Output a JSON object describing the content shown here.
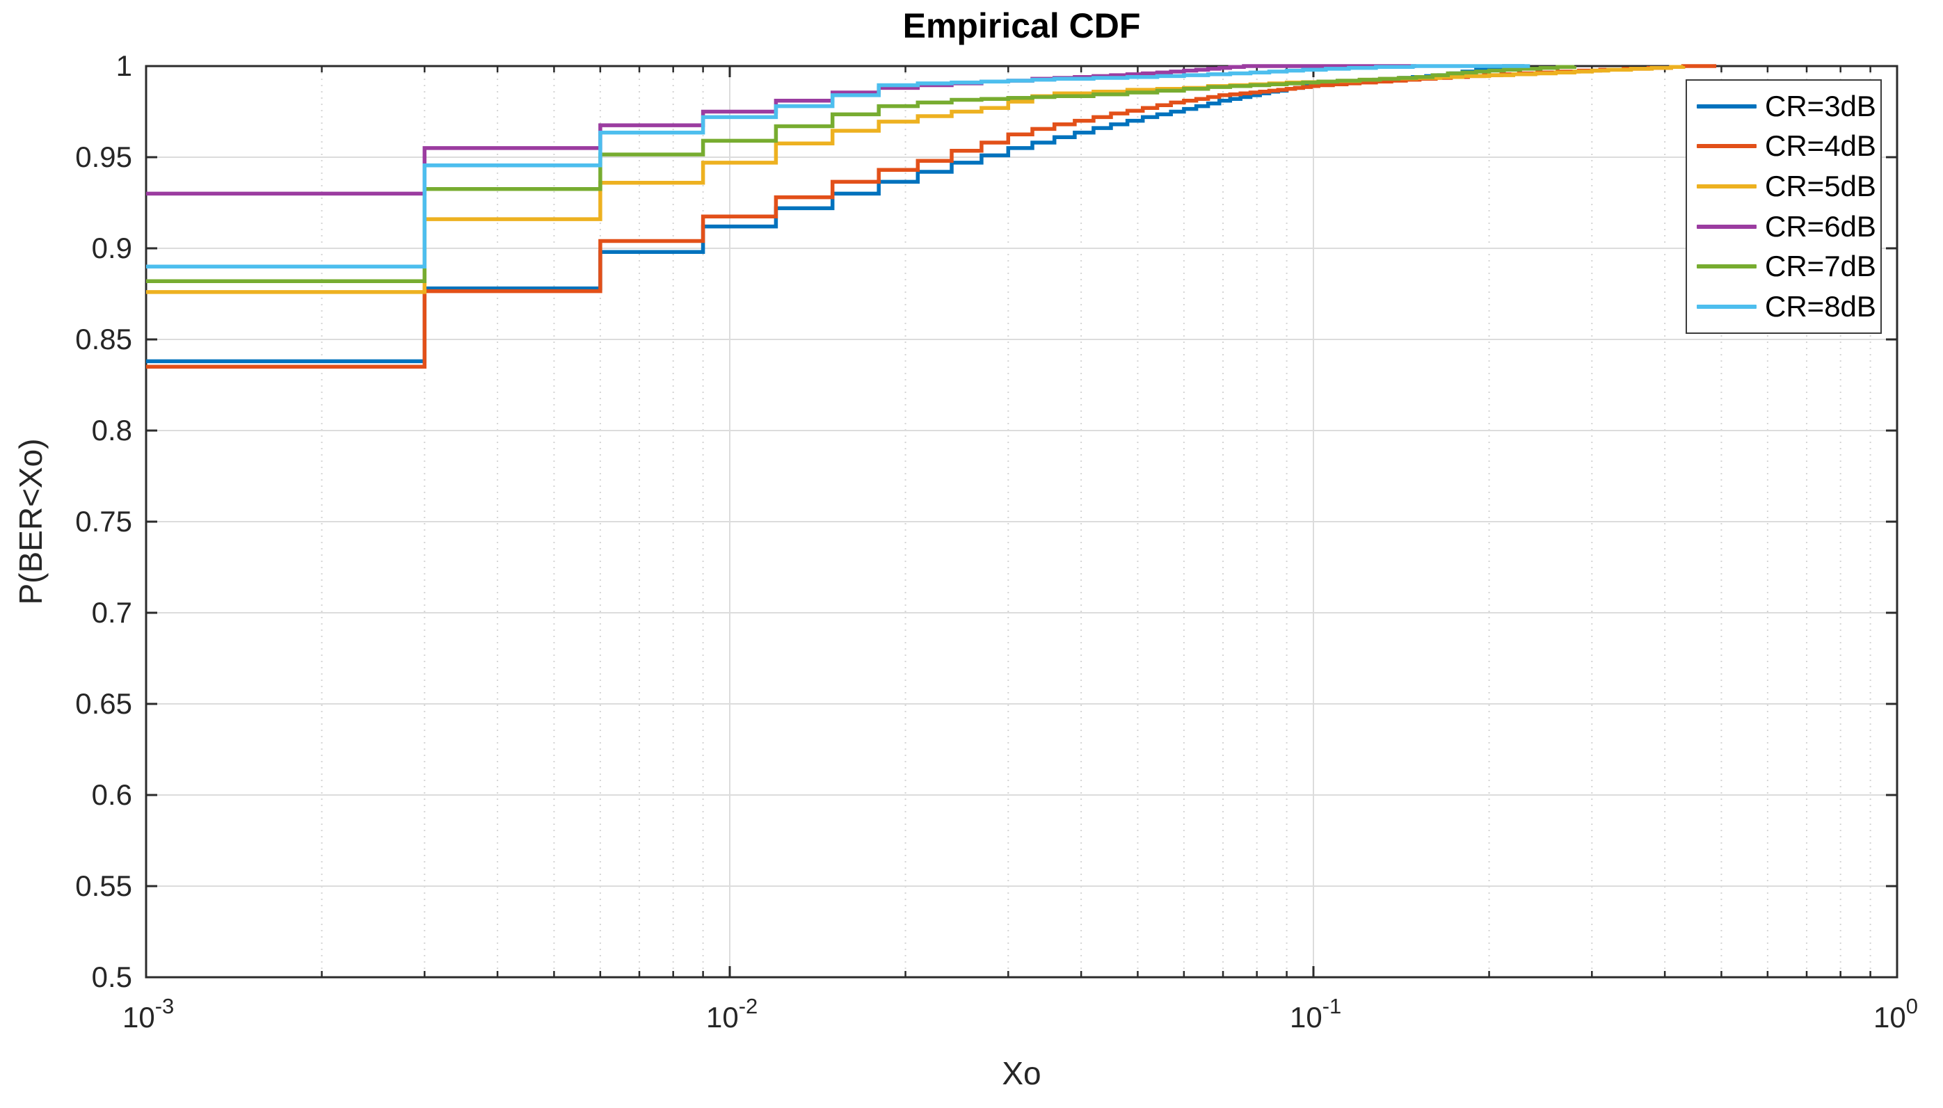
{
  "chart_data": {
    "type": "line",
    "subtype": "ecdf-step",
    "title": "Empirical CDF",
    "xlabel": "Xo",
    "ylabel": "P(BER<Xo)",
    "xscale": "log",
    "xlim": [
      0.001,
      1
    ],
    "ylim": [
      0.5,
      1
    ],
    "grid": true,
    "legend_position": "top-right-inside",
    "x_ticks": [
      {
        "mantissa": "10",
        "exponent": "-3",
        "value": 0.001
      },
      {
        "mantissa": "10",
        "exponent": "-2",
        "value": 0.01
      },
      {
        "mantissa": "10",
        "exponent": "-1",
        "value": 0.1
      },
      {
        "mantissa": "10",
        "exponent": "0",
        "value": 1
      }
    ],
    "x_minor_ticks": [
      0.002,
      0.003,
      0.004,
      0.005,
      0.006,
      0.007,
      0.008,
      0.009,
      0.02,
      0.03,
      0.04,
      0.05,
      0.06,
      0.07,
      0.08,
      0.09,
      0.2,
      0.3,
      0.4,
      0.5,
      0.6,
      0.7,
      0.8,
      0.9
    ],
    "y_ticks": [
      {
        "label": "1",
        "value": 1.0
      },
      {
        "label": "0.95",
        "value": 0.95
      },
      {
        "label": "0.9",
        "value": 0.9
      },
      {
        "label": "0.85",
        "value": 0.85
      },
      {
        "label": "0.8",
        "value": 0.8
      },
      {
        "label": "0.75",
        "value": 0.75
      },
      {
        "label": "0.7",
        "value": 0.7
      },
      {
        "label": "0.65",
        "value": 0.65
      },
      {
        "label": "0.6",
        "value": 0.6
      },
      {
        "label": "0.55",
        "value": 0.55
      },
      {
        "label": "0.5",
        "value": 0.5
      }
    ],
    "style": {
      "axis_color": "#2b2b2b",
      "major_grid_color": "#dcdcdc",
      "minor_grid_color": "#d4d4d4",
      "background": "#ffffff",
      "line_width": 5.5
    },
    "series": [
      {
        "name": "CR=3dB",
        "color": "#0072BD",
        "points": [
          [
            0.001,
            0.838
          ],
          [
            0.003,
            0.878
          ],
          [
            0.006,
            0.898
          ],
          [
            0.009,
            0.912
          ],
          [
            0.012,
            0.922
          ],
          [
            0.015,
            0.93
          ],
          [
            0.018,
            0.9365
          ],
          [
            0.021,
            0.942
          ],
          [
            0.024,
            0.947
          ],
          [
            0.027,
            0.951
          ],
          [
            0.03,
            0.955
          ],
          [
            0.033,
            0.958
          ],
          [
            0.036,
            0.961
          ],
          [
            0.039,
            0.9635
          ],
          [
            0.042,
            0.966
          ],
          [
            0.045,
            0.968
          ],
          [
            0.048,
            0.97
          ],
          [
            0.051,
            0.972
          ],
          [
            0.054,
            0.9735
          ],
          [
            0.057,
            0.975
          ],
          [
            0.06,
            0.9765
          ],
          [
            0.063,
            0.978
          ],
          [
            0.066,
            0.9795
          ],
          [
            0.069,
            0.981
          ],
          [
            0.072,
            0.982
          ],
          [
            0.075,
            0.983
          ],
          [
            0.078,
            0.984
          ],
          [
            0.081,
            0.985
          ],
          [
            0.084,
            0.986
          ],
          [
            0.087,
            0.9865
          ],
          [
            0.09,
            0.9875
          ],
          [
            0.093,
            0.988
          ],
          [
            0.096,
            0.989
          ],
          [
            0.099,
            0.9895
          ],
          [
            0.102,
            0.99
          ],
          [
            0.108,
            0.991
          ],
          [
            0.114,
            0.9915
          ],
          [
            0.12,
            0.992
          ],
          [
            0.127,
            0.9925
          ],
          [
            0.134,
            0.993
          ],
          [
            0.141,
            0.9935
          ],
          [
            0.148,
            0.994
          ],
          [
            0.156,
            0.9945
          ],
          [
            0.164,
            0.995
          ],
          [
            0.172,
            0.996
          ],
          [
            0.18,
            0.997
          ],
          [
            0.19,
            0.998
          ],
          [
            0.2,
            0.999
          ],
          [
            0.212,
            1.0
          ],
          [
            0.23,
            1.0
          ]
        ]
      },
      {
        "name": "CR=4dB",
        "color": "#E25019",
        "points": [
          [
            0.001,
            0.835
          ],
          [
            0.003,
            0.8765
          ],
          [
            0.006,
            0.904
          ],
          [
            0.009,
            0.9175
          ],
          [
            0.012,
            0.928
          ],
          [
            0.015,
            0.9365
          ],
          [
            0.018,
            0.943
          ],
          [
            0.021,
            0.948
          ],
          [
            0.024,
            0.9535
          ],
          [
            0.027,
            0.958
          ],
          [
            0.03,
            0.9625
          ],
          [
            0.033,
            0.9655
          ],
          [
            0.036,
            0.968
          ],
          [
            0.039,
            0.97
          ],
          [
            0.042,
            0.972
          ],
          [
            0.045,
            0.974
          ],
          [
            0.048,
            0.9755
          ],
          [
            0.051,
            0.977
          ],
          [
            0.054,
            0.9785
          ],
          [
            0.057,
            0.98
          ],
          [
            0.06,
            0.981
          ],
          [
            0.063,
            0.982
          ],
          [
            0.066,
            0.983
          ],
          [
            0.069,
            0.984
          ],
          [
            0.072,
            0.9845
          ],
          [
            0.075,
            0.985
          ],
          [
            0.078,
            0.9855
          ],
          [
            0.081,
            0.986
          ],
          [
            0.084,
            0.9865
          ],
          [
            0.087,
            0.987
          ],
          [
            0.09,
            0.9875
          ],
          [
            0.093,
            0.988
          ],
          [
            0.096,
            0.9885
          ],
          [
            0.099,
            0.989
          ],
          [
            0.102,
            0.9895
          ],
          [
            0.108,
            0.99
          ],
          [
            0.114,
            0.9905
          ],
          [
            0.12,
            0.991
          ],
          [
            0.128,
            0.9915
          ],
          [
            0.136,
            0.992
          ],
          [
            0.144,
            0.9925
          ],
          [
            0.152,
            0.993
          ],
          [
            0.162,
            0.9935
          ],
          [
            0.172,
            0.994
          ],
          [
            0.184,
            0.9945
          ],
          [
            0.196,
            0.995
          ],
          [
            0.21,
            0.9955
          ],
          [
            0.225,
            0.996
          ],
          [
            0.242,
            0.9965
          ],
          [
            0.262,
            0.997
          ],
          [
            0.285,
            0.9975
          ],
          [
            0.31,
            0.998
          ],
          [
            0.34,
            0.9985
          ],
          [
            0.375,
            0.999
          ],
          [
            0.41,
            0.9995
          ],
          [
            0.43,
            1.0
          ],
          [
            0.49,
            1.0
          ]
        ]
      },
      {
        "name": "CR=5dB",
        "color": "#EDB120",
        "points": [
          [
            0.001,
            0.876
          ],
          [
            0.003,
            0.916
          ],
          [
            0.006,
            0.936
          ],
          [
            0.009,
            0.947
          ],
          [
            0.012,
            0.9575
          ],
          [
            0.015,
            0.9645
          ],
          [
            0.018,
            0.9695
          ],
          [
            0.021,
            0.9725
          ],
          [
            0.024,
            0.975
          ],
          [
            0.027,
            0.977
          ],
          [
            0.03,
            0.9805
          ],
          [
            0.033,
            0.9835
          ],
          [
            0.036,
            0.985
          ],
          [
            0.042,
            0.986
          ],
          [
            0.048,
            0.987
          ],
          [
            0.054,
            0.9875
          ],
          [
            0.06,
            0.988
          ],
          [
            0.066,
            0.989
          ],
          [
            0.072,
            0.9895
          ],
          [
            0.078,
            0.99
          ],
          [
            0.084,
            0.9905
          ],
          [
            0.09,
            0.991
          ],
          [
            0.096,
            0.9912
          ],
          [
            0.102,
            0.9915
          ],
          [
            0.11,
            0.9918
          ],
          [
            0.12,
            0.9925
          ],
          [
            0.13,
            0.993
          ],
          [
            0.14,
            0.9932
          ],
          [
            0.15,
            0.9935
          ],
          [
            0.165,
            0.994
          ],
          [
            0.18,
            0.9945
          ],
          [
            0.2,
            0.995
          ],
          [
            0.22,
            0.9955
          ],
          [
            0.24,
            0.996
          ],
          [
            0.26,
            0.9965
          ],
          [
            0.28,
            0.997
          ],
          [
            0.3,
            0.9975
          ],
          [
            0.32,
            0.998
          ],
          [
            0.35,
            0.9985
          ],
          [
            0.38,
            0.999
          ],
          [
            0.41,
            0.9995
          ],
          [
            0.43,
            1.0
          ]
        ]
      },
      {
        "name": "CR=6dB",
        "color": "#9B3CA0",
        "points": [
          [
            0.001,
            0.93
          ],
          [
            0.003,
            0.955
          ],
          [
            0.006,
            0.9675
          ],
          [
            0.009,
            0.975
          ],
          [
            0.012,
            0.981
          ],
          [
            0.015,
            0.9855
          ],
          [
            0.018,
            0.988
          ],
          [
            0.021,
            0.9895
          ],
          [
            0.024,
            0.9905
          ],
          [
            0.027,
            0.9915
          ],
          [
            0.03,
            0.992
          ],
          [
            0.033,
            0.993
          ],
          [
            0.036,
            0.9935
          ],
          [
            0.039,
            0.994
          ],
          [
            0.042,
            0.9945
          ],
          [
            0.045,
            0.995
          ],
          [
            0.048,
            0.9955
          ],
          [
            0.051,
            0.996
          ],
          [
            0.054,
            0.9965
          ],
          [
            0.057,
            0.997
          ],
          [
            0.06,
            0.9975
          ],
          [
            0.063,
            0.998
          ],
          [
            0.066,
            0.9985
          ],
          [
            0.069,
            0.999
          ],
          [
            0.072,
            0.9995
          ],
          [
            0.076,
            1.0
          ],
          [
            0.15,
            1.0
          ]
        ]
      },
      {
        "name": "CR=7dB",
        "color": "#77AC30",
        "points": [
          [
            0.001,
            0.882
          ],
          [
            0.003,
            0.9325
          ],
          [
            0.006,
            0.9515
          ],
          [
            0.009,
            0.959
          ],
          [
            0.012,
            0.967
          ],
          [
            0.015,
            0.9735
          ],
          [
            0.018,
            0.978
          ],
          [
            0.021,
            0.98
          ],
          [
            0.024,
            0.9815
          ],
          [
            0.027,
            0.982
          ],
          [
            0.03,
            0.9825
          ],
          [
            0.033,
            0.983
          ],
          [
            0.036,
            0.9835
          ],
          [
            0.042,
            0.9845
          ],
          [
            0.048,
            0.9855
          ],
          [
            0.054,
            0.9865
          ],
          [
            0.06,
            0.9875
          ],
          [
            0.066,
            0.9885
          ],
          [
            0.072,
            0.989
          ],
          [
            0.078,
            0.9895
          ],
          [
            0.084,
            0.99
          ],
          [
            0.09,
            0.9905
          ],
          [
            0.096,
            0.991
          ],
          [
            0.102,
            0.9915
          ],
          [
            0.11,
            0.992
          ],
          [
            0.12,
            0.9925
          ],
          [
            0.13,
            0.993
          ],
          [
            0.14,
            0.9935
          ],
          [
            0.15,
            0.994
          ],
          [
            0.16,
            0.995
          ],
          [
            0.17,
            0.996
          ],
          [
            0.18,
            0.9965
          ],
          [
            0.19,
            0.997
          ],
          [
            0.2,
            0.9975
          ],
          [
            0.212,
            0.998
          ],
          [
            0.226,
            0.9985
          ],
          [
            0.245,
            0.999
          ],
          [
            0.262,
            0.9995
          ],
          [
            0.28,
            1.0
          ]
        ]
      },
      {
        "name": "CR=8dB",
        "color": "#4DBEEE",
        "points": [
          [
            0.001,
            0.89
          ],
          [
            0.003,
            0.9455
          ],
          [
            0.006,
            0.9635
          ],
          [
            0.009,
            0.972
          ],
          [
            0.012,
            0.978
          ],
          [
            0.015,
            0.984
          ],
          [
            0.018,
            0.9895
          ],
          [
            0.021,
            0.9905
          ],
          [
            0.024,
            0.991
          ],
          [
            0.027,
            0.9915
          ],
          [
            0.03,
            0.992
          ],
          [
            0.033,
            0.9925
          ],
          [
            0.036,
            0.993
          ],
          [
            0.042,
            0.9935
          ],
          [
            0.048,
            0.994
          ],
          [
            0.054,
            0.9945
          ],
          [
            0.06,
            0.995
          ],
          [
            0.066,
            0.9955
          ],
          [
            0.072,
            0.996
          ],
          [
            0.078,
            0.9965
          ],
          [
            0.084,
            0.997
          ],
          [
            0.09,
            0.9975
          ],
          [
            0.096,
            0.998
          ],
          [
            0.105,
            0.9985
          ],
          [
            0.115,
            0.999
          ],
          [
            0.128,
            0.9995
          ],
          [
            0.148,
            1.0
          ],
          [
            0.235,
            1.0
          ]
        ]
      }
    ]
  },
  "legend": {
    "entries": [
      {
        "label": "CR=3dB",
        "color": "#0072BD"
      },
      {
        "label": "CR=4dB",
        "color": "#E25019"
      },
      {
        "label": "CR=5dB",
        "color": "#EDB120"
      },
      {
        "label": "CR=6dB",
        "color": "#9B3CA0"
      },
      {
        "label": "CR=7dB",
        "color": "#77AC30"
      },
      {
        "label": "CR=8dB",
        "color": "#4DBEEE"
      }
    ]
  }
}
